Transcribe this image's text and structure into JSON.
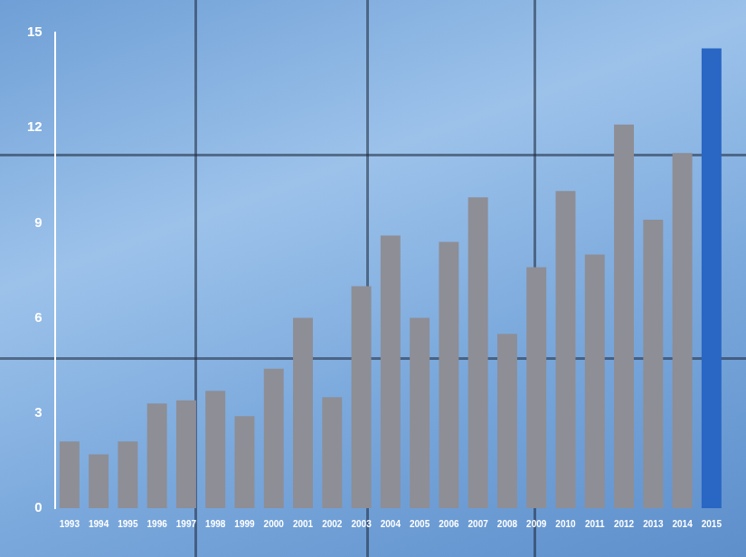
{
  "chart_data": {
    "type": "bar",
    "categories": [
      "1993",
      "1994",
      "1995",
      "1996",
      "1997",
      "1998",
      "1999",
      "2000",
      "2001",
      "2002",
      "2003",
      "2004",
      "2005",
      "2006",
      "2007",
      "2008",
      "2009",
      "2010",
      "2011",
      "2012",
      "2013",
      "2014",
      "2015"
    ],
    "values": [
      2.1,
      1.7,
      2.1,
      3.3,
      3.4,
      3.7,
      2.9,
      4.4,
      6.0,
      3.5,
      7.0,
      8.6,
      6.0,
      8.4,
      9.8,
      5.5,
      7.6,
      10.0,
      8.0,
      12.1,
      9.1,
      11.2,
      14.5
    ],
    "colors": [
      "#8e8e96",
      "#8e8e96",
      "#8e8e96",
      "#8e8e96",
      "#8e8e96",
      "#8e8e96",
      "#8e8e96",
      "#8e8e96",
      "#8e8e96",
      "#8e8e96",
      "#8e8e96",
      "#8e8e96",
      "#8e8e96",
      "#8e8e96",
      "#8e8e96",
      "#8e8e96",
      "#8e8e96",
      "#8e8e96",
      "#8e8e96",
      "#8e8e96",
      "#8e8e96",
      "#8e8e96",
      "#2a66c4"
    ],
    "ylim": [
      0,
      15
    ],
    "yticks": [
      0,
      3,
      6,
      9,
      12,
      15
    ],
    "grid": false
  }
}
